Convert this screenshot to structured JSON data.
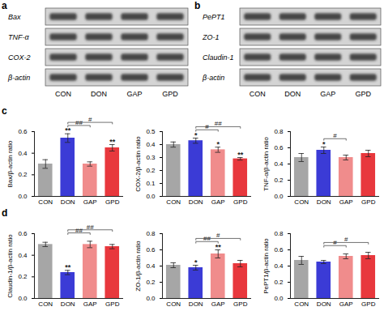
{
  "blots": [
    {
      "panel": "a",
      "proteins": [
        "Bax",
        "TNF-α",
        "COX-2",
        "β-actin"
      ],
      "lanes": [
        "CON",
        "DON",
        "GAP",
        "GPD"
      ]
    },
    {
      "panel": "b",
      "proteins": [
        "PePT1",
        "ZO-1",
        "Claudin-1",
        "β-actin"
      ],
      "lanes": [
        "CON",
        "DON",
        "GAP",
        "GPD"
      ]
    }
  ],
  "chart_data": [
    {
      "type": "bar",
      "panel": "c",
      "categories": [
        "CON",
        "DON",
        "GAP",
        "GPD"
      ],
      "colors": [
        "#a6a6a6",
        "#3b3bd6",
        "#f08c8c",
        "#e8383d"
      ],
      "values": [
        0.3,
        0.54,
        0.3,
        0.45
      ],
      "errors": [
        0.04,
        0.04,
        0.02,
        0.03
      ],
      "ylabel": "Bax/β-actin ratio",
      "ylim": [
        0,
        0.6
      ],
      "yticks": [
        {
          "value": 0,
          "label": "0.0"
        },
        0.2,
        0.4,
        0.6
      ],
      "significance": [
        null,
        "**",
        null,
        "**"
      ],
      "comparisons": [
        {
          "from": "DON",
          "to": "GAP",
          "label": "##"
        },
        {
          "from": "DON",
          "to": "GPD",
          "label": "#"
        }
      ]
    },
    {
      "type": "bar",
      "categories": [
        "CON",
        "DON",
        "GAP",
        "GPD"
      ],
      "colors": [
        "#a6a6a6",
        "#3b3bd6",
        "#f08c8c",
        "#e8383d"
      ],
      "values": [
        0.4,
        0.43,
        0.36,
        0.29
      ],
      "errors": [
        0.02,
        0.02,
        0.02,
        0.01
      ],
      "ylabel": "COX-2/β-actin ratio",
      "ylim": [
        0,
        0.5
      ],
      "yticks": [
        {
          "value": 0,
          "label": "0.0"
        },
        0.1,
        0.2,
        0.3,
        0.4,
        0.5
      ],
      "significance": [
        null,
        "*",
        "*",
        "**"
      ],
      "comparisons": [
        {
          "from": "DON",
          "to": "GAP",
          "label": "#"
        },
        {
          "from": "DON",
          "to": "GPD",
          "label": "##"
        }
      ]
    },
    {
      "type": "bar",
      "categories": [
        "CON",
        "DON",
        "GAP",
        "GPD"
      ],
      "colors": [
        "#a6a6a6",
        "#3b3bd6",
        "#f08c8c",
        "#e8383d"
      ],
      "values": [
        0.48,
        0.57,
        0.48,
        0.53
      ],
      "errors": [
        0.05,
        0.04,
        0.03,
        0.04
      ],
      "ylabel": "TNF-α/β-actin ratio",
      "ylim": [
        0,
        0.8
      ],
      "yticks": [
        {
          "value": 0,
          "label": "0.0"
        },
        0.2,
        0.4,
        0.6,
        0.8
      ],
      "significance": [
        null,
        "*",
        null,
        null
      ],
      "comparisons": [
        {
          "from": "DON",
          "to": "GAP",
          "label": "#"
        }
      ]
    },
    {
      "type": "bar",
      "panel": "d",
      "categories": [
        "CON",
        "DON",
        "GAP",
        "GPD"
      ],
      "colors": [
        "#a6a6a6",
        "#3b3bd6",
        "#f08c8c",
        "#e8383d"
      ],
      "values": [
        0.5,
        0.24,
        0.5,
        0.48
      ],
      "errors": [
        0.02,
        0.02,
        0.03,
        0.02
      ],
      "ylabel": "Claudin-1/β-actin ratio",
      "ylim": [
        0,
        0.6
      ],
      "yticks": [
        {
          "value": 0,
          "label": "0.0"
        },
        0.2,
        0.4,
        0.6
      ],
      "significance": [
        null,
        "**",
        null,
        null
      ],
      "comparisons": [
        {
          "from": "DON",
          "to": "GAP",
          "label": "##"
        },
        {
          "from": "DON",
          "to": "GPD",
          "label": "##"
        }
      ]
    },
    {
      "type": "bar",
      "categories": [
        "CON",
        "DON",
        "GAP",
        "GPD"
      ],
      "colors": [
        "#a6a6a6",
        "#3b3bd6",
        "#f08c8c",
        "#e8383d"
      ],
      "values": [
        0.41,
        0.38,
        0.55,
        0.43
      ],
      "errors": [
        0.03,
        0.03,
        0.05,
        0.04
      ],
      "ylabel": "ZO-1/β-actin ratio",
      "ylim": [
        0,
        0.8
      ],
      "yticks": [
        {
          "value": 0,
          "label": "0.0"
        },
        0.2,
        0.4,
        0.6,
        0.8
      ],
      "significance": [
        null,
        "*",
        "**",
        null
      ],
      "comparisons": [
        {
          "from": "DON",
          "to": "GAP",
          "label": "##"
        },
        {
          "from": "DON",
          "to": "GPD",
          "label": "#"
        }
      ]
    },
    {
      "type": "bar",
      "categories": [
        "CON",
        "DON",
        "GAP",
        "GPD"
      ],
      "colors": [
        "#a6a6a6",
        "#3b3bd6",
        "#f08c8c",
        "#e8383d"
      ],
      "values": [
        0.47,
        0.45,
        0.52,
        0.53
      ],
      "errors": [
        0.05,
        0.02,
        0.03,
        0.04
      ],
      "ylabel": "PePT1/β-actin ratio",
      "ylim": [
        0,
        0.8
      ],
      "yticks": [
        {
          "value": 0,
          "label": "0.0"
        },
        0.2,
        0.4,
        0.6,
        0.8
      ],
      "significance": [
        null,
        null,
        null,
        null
      ],
      "comparisons": [
        {
          "from": "DON",
          "to": "GAP",
          "label": "#"
        },
        {
          "from": "DON",
          "to": "GPD",
          "label": "#"
        }
      ]
    }
  ]
}
